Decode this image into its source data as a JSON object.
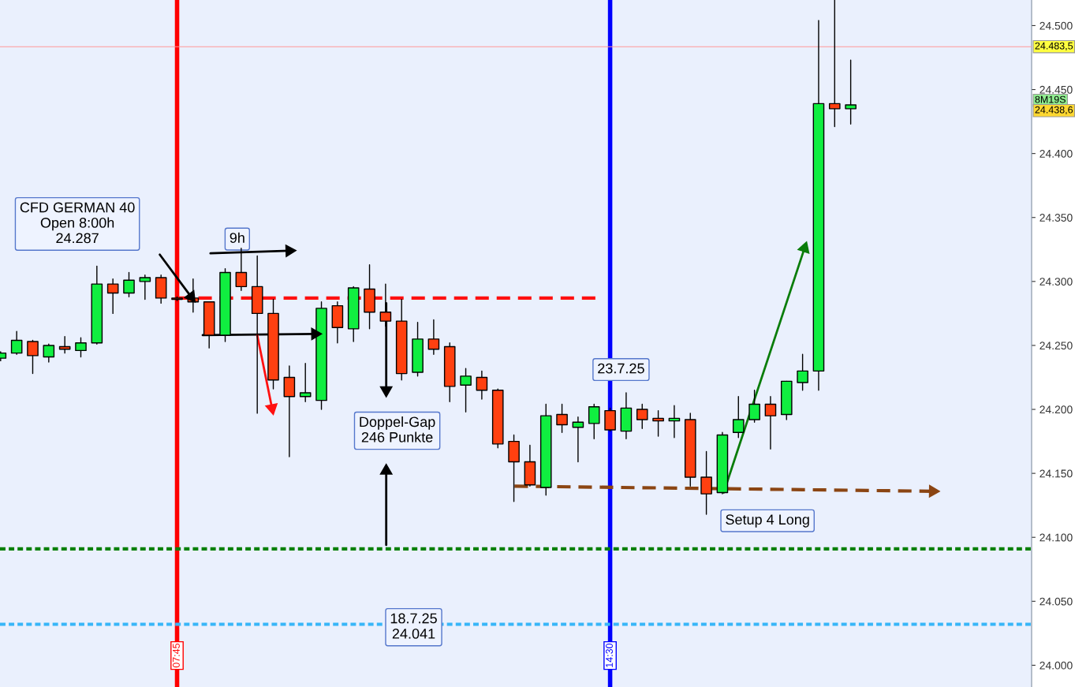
{
  "chart_data": {
    "type": "candlestick",
    "x": [
      5.0,
      5.25,
      5.5,
      5.75,
      6.0,
      6.25,
      6.5,
      6.75,
      7.0,
      7.25,
      7.5,
      7.75,
      8.0,
      8.25,
      8.5,
      8.75,
      9.0,
      9.25,
      9.5,
      9.75,
      10.0,
      10.25,
      10.5,
      10.75,
      11.0,
      11.25,
      11.5,
      11.75,
      12.0,
      12.25,
      12.5,
      12.75,
      13.0,
      13.25,
      13.5,
      13.75,
      14.0,
      14.25,
      14.5,
      14.75,
      15.0,
      15.25,
      15.5,
      15.75,
      16.0,
      16.25,
      16.5,
      16.75,
      17.0,
      17.25,
      17.5,
      17.75,
      18.0,
      18.25
    ],
    "ohlc": [
      [
        24240,
        24245,
        24238,
        24244
      ],
      [
        24244,
        24261,
        24243,
        24254
      ],
      [
        24253,
        24254,
        24228,
        24242
      ],
      [
        24241,
        24251,
        24237,
        24250
      ],
      [
        24249,
        24257,
        24244,
        24247
      ],
      [
        24246,
        24256,
        24241,
        24252
      ],
      [
        24252,
        24312,
        24251,
        24298
      ],
      [
        24298,
        24302,
        24275,
        24291
      ],
      [
        24291,
        24307,
        24288,
        24301
      ],
      [
        24300,
        24305,
        24286,
        24303
      ],
      [
        24303,
        24305,
        24283,
        24287
      ],
      [
        24287,
        24288,
        24285,
        24286
      ],
      [
        24287,
        24302,
        24276,
        24284
      ],
      [
        24284,
        24284,
        24248,
        24258
      ],
      [
        24258,
        24310,
        24253,
        24307
      ],
      [
        24307,
        24326,
        24293,
        24296
      ],
      [
        24296,
        24320,
        24197,
        24275
      ],
      [
        24275,
        24286,
        24216,
        24223
      ],
      [
        24225,
        24234,
        24163,
        24210
      ],
      [
        24210,
        24236,
        24206,
        24213
      ],
      [
        24207,
        24284,
        24200,
        24279
      ],
      [
        24281,
        24284,
        24252,
        24264
      ],
      [
        24263,
        24296,
        24253,
        24295
      ],
      [
        24294,
        24313,
        24263,
        24276
      ],
      [
        24276,
        24298,
        24265,
        24269
      ],
      [
        24269,
        24286,
        24223,
        24228
      ],
      [
        24229,
        24268,
        24226,
        24255
      ],
      [
        24255,
        24270,
        24243,
        24247
      ],
      [
        24249,
        24252,
        24206,
        24218
      ],
      [
        24219,
        24232,
        24198,
        24226
      ],
      [
        24225,
        24230,
        24208,
        24215
      ],
      [
        24215,
        24216,
        24170,
        24173
      ],
      [
        24175,
        24180,
        24128,
        24159
      ],
      [
        24159,
        24172,
        24140,
        24141
      ],
      [
        24139,
        24204,
        24133,
        24195
      ],
      [
        24196,
        24204,
        24182,
        24188
      ],
      [
        24186,
        24194,
        24159,
        24190
      ],
      [
        24189,
        24204,
        24177,
        24202
      ],
      [
        24199,
        24201,
        24183,
        24184
      ],
      [
        24183,
        24213,
        24177,
        24201
      ],
      [
        24200,
        24204,
        24185,
        24192
      ],
      [
        24193,
        24199,
        24179,
        24191
      ],
      [
        24191,
        24203,
        24178,
        24193
      ],
      [
        24192,
        24197,
        24140,
        24147
      ],
      [
        24147,
        24167,
        24118,
        24134
      ],
      [
        24135,
        24182,
        24134,
        24180
      ],
      [
        24182,
        24210,
        24178,
        24192
      ],
      [
        24192,
        24215,
        24190,
        24204
      ],
      [
        24204,
        24210,
        24169,
        24195
      ],
      [
        24196,
        24222,
        24192,
        24222
      ],
      [
        24221,
        24243,
        24215,
        24230
      ],
      [
        24230,
        24504,
        24215,
        24439
      ],
      [
        24439,
        24520,
        24421,
        24435
      ],
      [
        24435,
        24473,
        24423,
        24438
      ]
    ],
    "colors": [
      "#10ee40",
      "#10ee40",
      "#ff4010",
      "#10ee40",
      "#ff4010",
      "#10ee40",
      "#10ee40",
      "#ff4010",
      "#10ee40",
      "#10ee40",
      "#ff4010",
      "#ff4010",
      "#ff4010",
      "#ff4010",
      "#10ee40",
      "#ff4010",
      "#ff4010",
      "#ff4010",
      "#ff4010",
      "#10ee40",
      "#10ee40",
      "#ff4010",
      "#10ee40",
      "#ff4010",
      "#ff4010",
      "#ff4010",
      "#10ee40",
      "#ff4010",
      "#ff4010",
      "#10ee40",
      "#ff4010",
      "#ff4010",
      "#ff4010",
      "#ff4010",
      "#10ee40",
      "#ff4010",
      "#10ee40",
      "#10ee40",
      "#ff4010",
      "#10ee40",
      "#ff4010",
      "#ff4010",
      "#10ee40",
      "#ff4010",
      "#ff4010",
      "#10ee40",
      "#10ee40",
      "#10ee40",
      "#ff4010",
      "#10ee40",
      "#10ee40",
      "#10ee40",
      "#ff4010",
      "#10ee40"
    ],
    "series": [
      {
        "type": "line",
        "x": [
          7.75,
          14.27
        ],
        "values": [
          24287,
          24287
        ],
        "color": "#ff1010",
        "line_style": "dashed",
        "marker": "none"
      },
      {
        "type": "line",
        "x": [
          13.01,
          19.53
        ],
        "values": [
          24140,
          24136
        ],
        "color": "#8b4513",
        "line_style": "dashed",
        "marker": "triangle"
      },
      {
        "type": "line",
        "x": [
          7.48,
          7.97
        ],
        "values": [
          24321,
          24288
        ],
        "color": "#000000",
        "line_style": "solid",
        "marker": "triangle"
      },
      {
        "type": "line",
        "x": [
          8.27,
          9.5
        ],
        "values": [
          24322,
          24324
        ],
        "color": "#000000",
        "line_style": "solid",
        "marker": "triangle"
      },
      {
        "type": "line",
        "x": [
          8.15,
          9.9
        ],
        "values": [
          24258,
          24259
        ],
        "color": "#000000",
        "line_style": "solid",
        "marker": "triangle"
      },
      {
        "type": "line",
        "x": [
          9.0,
          9.23
        ],
        "values": [
          24258,
          24201
        ],
        "color": "#ff1010",
        "line_style": "solid",
        "marker": "triangle"
      },
      {
        "type": "line",
        "x": [
          11.01,
          11.01
        ],
        "values": [
          24283,
          24215
        ],
        "color": "#000000",
        "line_style": "solid",
        "marker": "triangle"
      },
      {
        "type": "line",
        "x": [
          11.01,
          11.01
        ],
        "values": [
          24094,
          24152
        ],
        "color": "#000000",
        "line_style": "solid",
        "marker": "triangle"
      },
      {
        "type": "line",
        "x": [
          16.27,
          17.53
        ],
        "values": [
          24135,
          24326
        ],
        "color": "#0a7d0a",
        "line_style": "solid",
        "marker": "triangle"
      }
    ],
    "ref_lines": [
      {
        "axis": "x",
        "value": 7.75,
        "color": "#ff0000",
        "line_style": "solid"
      },
      {
        "axis": "x",
        "value": 14.5,
        "color": "#0000ff",
        "line_style": "solid"
      },
      {
        "axis": "y",
        "value": 24483.5,
        "label": "24.483,5",
        "color": "#ff9999",
        "line_style": "solid"
      },
      {
        "axis": "y",
        "value": 24091,
        "color": "#0a800a",
        "line_style": "dashed"
      },
      {
        "axis": "y",
        "value": 24032,
        "color": "#38b6f8",
        "line_style": "dashed"
      }
    ],
    "annotations": [
      "CFD GERMAN 40\nOpen 8:00h\n24.287",
      "9h",
      "Doppel-Gap\n246 Punkte",
      "23.7.25",
      "Setup 4 Long",
      "18.7.25\n24.041",
      "8M19S",
      "24.438,6"
    ],
    "xlim": [
      4.99,
      21.07
    ],
    "xticks": [
      {
        "value": 7.75,
        "label": "07:45"
      },
      {
        "value": 14.5,
        "label": "14:30"
      }
    ],
    "ylim": [
      23983,
      24520
    ],
    "yticks": [
      {
        "value": 24000,
        "label": "24.000"
      },
      {
        "value": 24050,
        "label": "24.050"
      },
      {
        "value": 24100,
        "label": "24.100"
      },
      {
        "value": 24150,
        "label": "24.150"
      },
      {
        "value": 24200,
        "label": "24.200"
      },
      {
        "value": 24250,
        "label": "24.250"
      },
      {
        "value": 24300,
        "label": "24.300"
      },
      {
        "value": 24350,
        "label": "24.350"
      },
      {
        "value": 24400,
        "label": "24.400"
      },
      {
        "value": 24450,
        "label": "24.450"
      },
      {
        "value": 24500,
        "label": "24.500"
      }
    ],
    "grid": false,
    "legend": false
  }
}
